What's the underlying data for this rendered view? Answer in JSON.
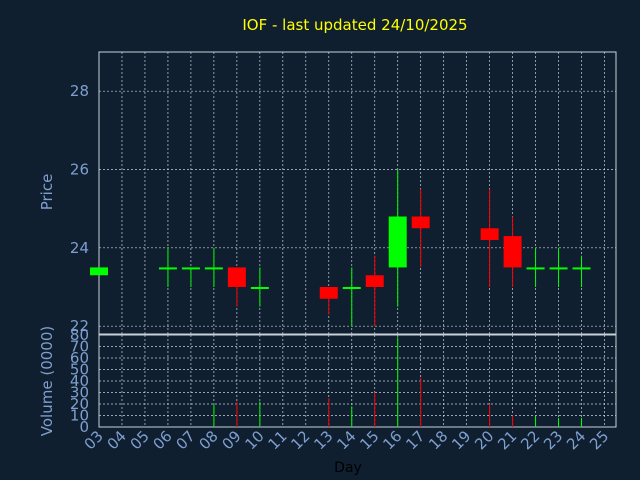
{
  "chart_data": {
    "type": "candlestick",
    "title": "IOF - last updated 24/10/2025",
    "xlabel": "Day",
    "x_ticks": [
      "03",
      "04",
      "05",
      "06",
      "07",
      "08",
      "09",
      "10",
      "11",
      "12",
      "13",
      "14",
      "15",
      "16",
      "17",
      "18",
      "19",
      "20",
      "21",
      "22",
      "23",
      "24",
      "25"
    ],
    "price": {
      "ylabel": "Price",
      "ylim": [
        21.8,
        29.0
      ],
      "yticks": [
        22,
        24,
        26,
        28
      ],
      "up_color": "#00ff00",
      "down_color": "#ff0000",
      "candles": [
        {
          "day": "03",
          "open": 23.3,
          "high": 23.5,
          "low": 23.3,
          "close": 23.5
        },
        {
          "day": "06",
          "open": 23.5,
          "high": 24.0,
          "low": 23.0,
          "close": 23.5
        },
        {
          "day": "07",
          "open": 23.5,
          "high": 23.5,
          "low": 23.0,
          "close": 23.5
        },
        {
          "day": "08",
          "open": 23.5,
          "high": 24.0,
          "low": 23.0,
          "close": 23.5
        },
        {
          "day": "09",
          "open": 23.5,
          "high": 23.5,
          "low": 22.5,
          "close": 23.0
        },
        {
          "day": "10",
          "open": 23.0,
          "high": 23.5,
          "low": 22.5,
          "close": 23.0
        },
        {
          "day": "13",
          "open": 23.0,
          "high": 23.0,
          "low": 22.3,
          "close": 22.7
        },
        {
          "day": "14",
          "open": 23.0,
          "high": 23.5,
          "low": 22.0,
          "close": 23.0
        },
        {
          "day": "15",
          "open": 23.3,
          "high": 23.8,
          "low": 22.0,
          "close": 23.0
        },
        {
          "day": "16",
          "open": 23.5,
          "high": 26.0,
          "low": 22.5,
          "close": 24.8
        },
        {
          "day": "17",
          "open": 24.8,
          "high": 25.5,
          "low": 23.5,
          "close": 24.5
        },
        {
          "day": "20",
          "open": 24.5,
          "high": 25.5,
          "low": 23.0,
          "close": 24.2
        },
        {
          "day": "21",
          "open": 24.3,
          "high": 24.8,
          "low": 23.0,
          "close": 23.5
        },
        {
          "day": "22",
          "open": 23.5,
          "high": 24.0,
          "low": 23.0,
          "close": 23.5
        },
        {
          "day": "23",
          "open": 23.5,
          "high": 24.0,
          "low": 23.0,
          "close": 23.5
        },
        {
          "day": "24",
          "open": 23.5,
          "high": 23.8,
          "low": 23.0,
          "close": 23.5
        }
      ]
    },
    "volume": {
      "ylabel": "Volume (0000)",
      "ylim": [
        0,
        80
      ],
      "yticks": [
        0,
        10,
        20,
        30,
        40,
        50,
        60,
        70,
        80
      ],
      "bars": [
        {
          "day": "08",
          "value": 20,
          "color": "#00ff00"
        },
        {
          "day": "09",
          "value": 22,
          "color": "#ff0000"
        },
        {
          "day": "10",
          "value": 22,
          "color": "#00ff00"
        },
        {
          "day": "13",
          "value": 25,
          "color": "#ff0000"
        },
        {
          "day": "14",
          "value": 18,
          "color": "#00ff00"
        },
        {
          "day": "15",
          "value": 30,
          "color": "#ff0000"
        },
        {
          "day": "16",
          "value": 78,
          "color": "#00ff00"
        },
        {
          "day": "17",
          "value": 43,
          "color": "#ff0000"
        },
        {
          "day": "20",
          "value": 20,
          "color": "#ff0000"
        },
        {
          "day": "21",
          "value": 10,
          "color": "#ff0000"
        },
        {
          "day": "22",
          "value": 10,
          "color": "#00ff00"
        },
        {
          "day": "23",
          "value": 8,
          "color": "#00ff00"
        },
        {
          "day": "24",
          "value": 8,
          "color": "#00ff00"
        }
      ]
    }
  }
}
